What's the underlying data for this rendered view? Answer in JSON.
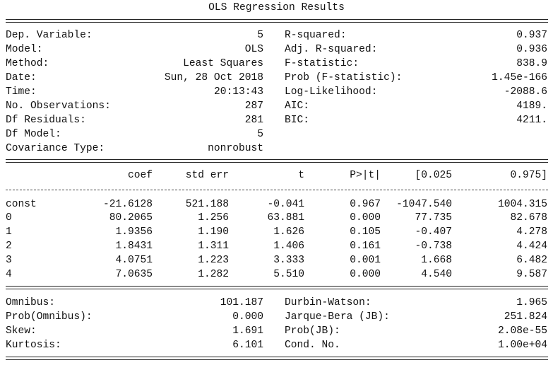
{
  "title": "OLS Regression Results",
  "model_info": [
    {
      "left_label": "Dep. Variable:",
      "left_value": "5",
      "right_label": "R-squared:",
      "right_value": "0.937"
    },
    {
      "left_label": "Model:",
      "left_value": "OLS",
      "right_label": "Adj. R-squared:",
      "right_value": "0.936"
    },
    {
      "left_label": "Method:",
      "left_value": "Least Squares",
      "right_label": "F-statistic:",
      "right_value": "838.9"
    },
    {
      "left_label": "Date:",
      "left_value": "Sun, 28 Oct 2018",
      "right_label": "Prob (F-statistic):",
      "right_value": "1.45e-166"
    },
    {
      "left_label": "Time:",
      "left_value": "20:13:43",
      "right_label": "Log-Likelihood:",
      "right_value": "-2088.6"
    },
    {
      "left_label": "No. Observations:",
      "left_value": "287",
      "right_label": "AIC:",
      "right_value": "4189."
    },
    {
      "left_label": "Df Residuals:",
      "left_value": "281",
      "right_label": "BIC:",
      "right_value": "4211."
    },
    {
      "left_label": "Df Model:",
      "left_value": "5",
      "right_label": "",
      "right_value": ""
    },
    {
      "left_label": "Covariance Type:",
      "left_value": "nonrobust",
      "right_label": "",
      "right_value": ""
    }
  ],
  "coef_table": {
    "headers": [
      "",
      "coef",
      "std err",
      "t",
      "P>|t|",
      "[0.025",
      "0.975]"
    ],
    "rows": [
      [
        "const",
        "-21.6128",
        "521.188",
        "-0.041",
        "0.967",
        "-1047.540",
        "1004.315"
      ],
      [
        "0",
        "80.2065",
        "1.256",
        "63.881",
        "0.000",
        "77.735",
        "82.678"
      ],
      [
        "1",
        "1.9356",
        "1.190",
        "1.626",
        "0.105",
        "-0.407",
        "4.278"
      ],
      [
        "2",
        "1.8431",
        "1.311",
        "1.406",
        "0.161",
        "-0.738",
        "4.424"
      ],
      [
        "3",
        "4.0751",
        "1.223",
        "3.333",
        "0.001",
        "1.668",
        "6.482"
      ],
      [
        "4",
        "7.0635",
        "1.282",
        "5.510",
        "0.000",
        "4.540",
        "9.587"
      ]
    ]
  },
  "diagnostics": [
    {
      "left_label": "Omnibus:",
      "left_value": "101.187",
      "right_label": "Durbin-Watson:",
      "right_value": "1.965"
    },
    {
      "left_label": "Prob(Omnibus):",
      "left_value": "0.000",
      "right_label": "Jarque-Bera (JB):",
      "right_value": "251.824"
    },
    {
      "left_label": "Skew:",
      "left_value": "1.691",
      "right_label": "Prob(JB):",
      "right_value": "2.08e-55"
    },
    {
      "left_label": "Kurtosis:",
      "left_value": "6.101",
      "right_label": "Cond. No.",
      "right_value": "1.00e+04"
    }
  ]
}
